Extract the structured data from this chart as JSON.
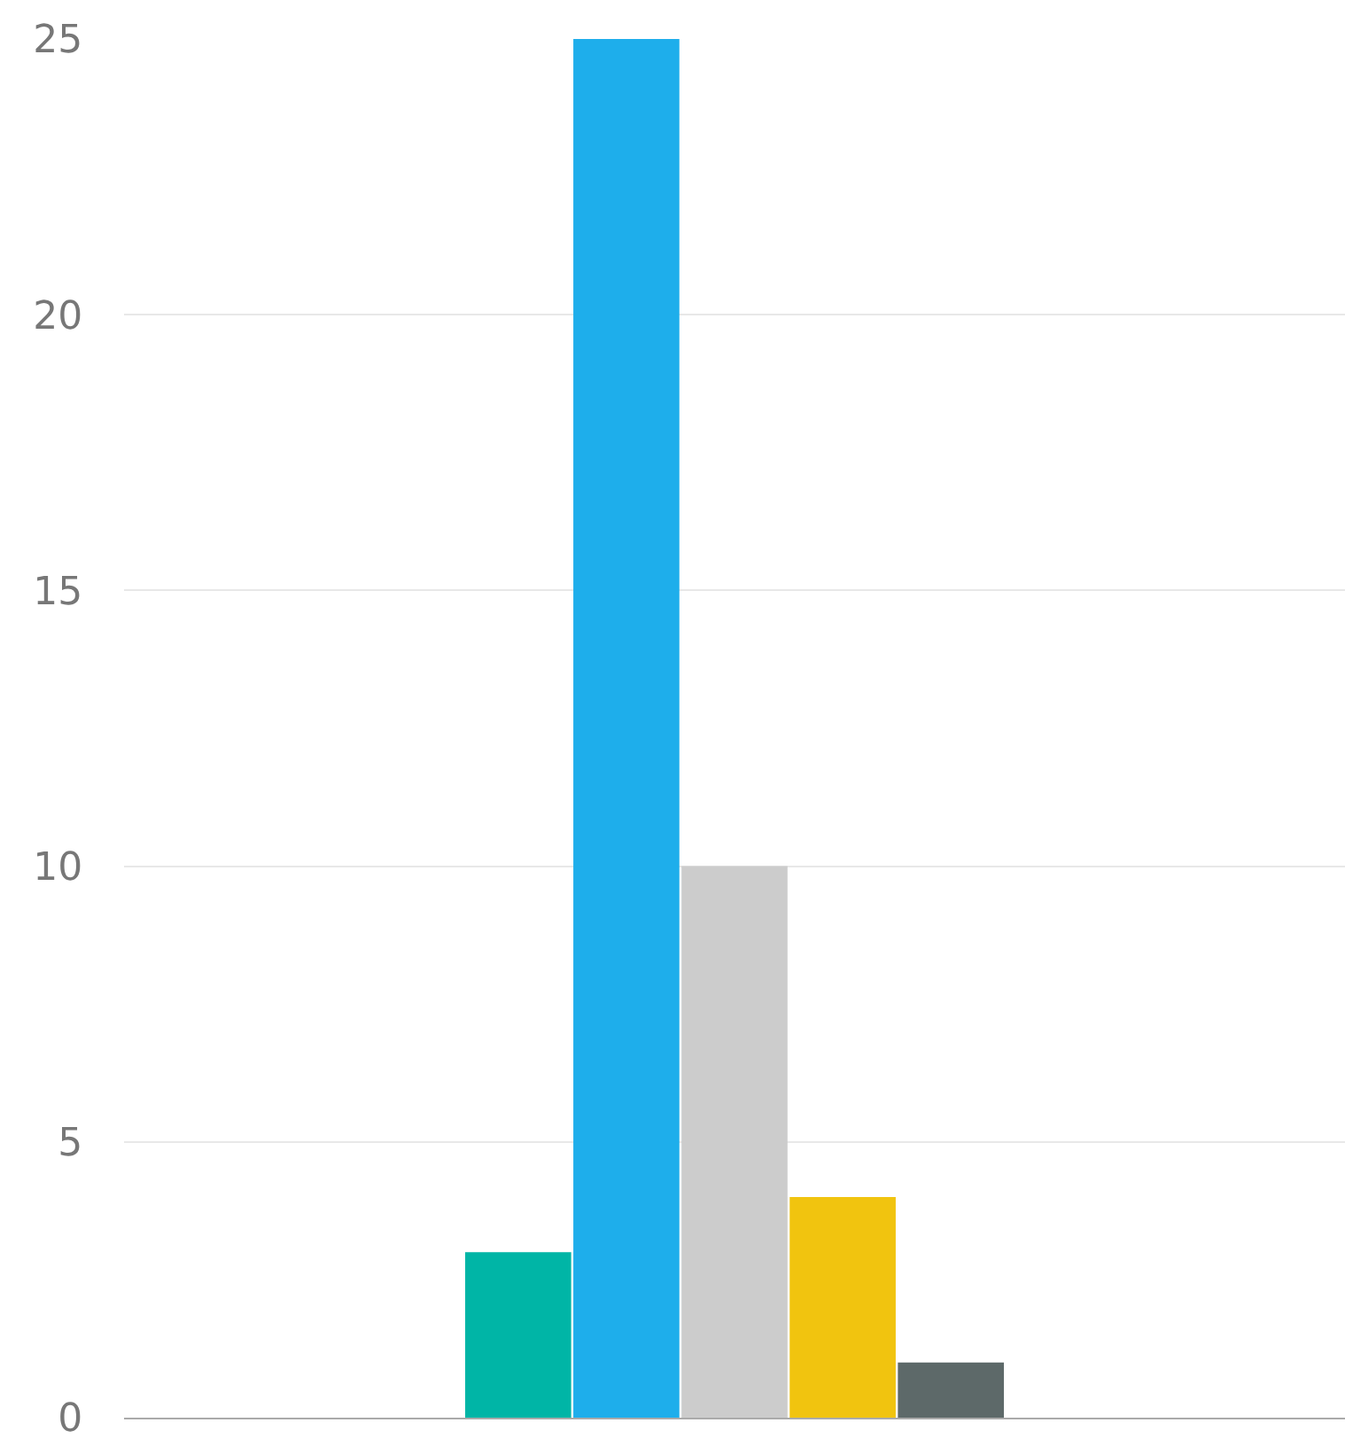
{
  "chart_data": {
    "type": "bar",
    "categories": [
      null
    ],
    "series": [
      {
        "color": "#00b5a6",
        "values": [
          3
        ]
      },
      {
        "color": "#1eaeeb",
        "values": [
          25
        ]
      },
      {
        "color": "#cccccc",
        "values": [
          10
        ]
      },
      {
        "color": "#f1c40f",
        "values": [
          4
        ]
      },
      {
        "color": "#5d6969",
        "values": [
          1
        ]
      }
    ],
    "ylim": [
      0,
      25
    ],
    "yticks": [
      0,
      5,
      10,
      15,
      20,
      25
    ],
    "grid": "y"
  }
}
